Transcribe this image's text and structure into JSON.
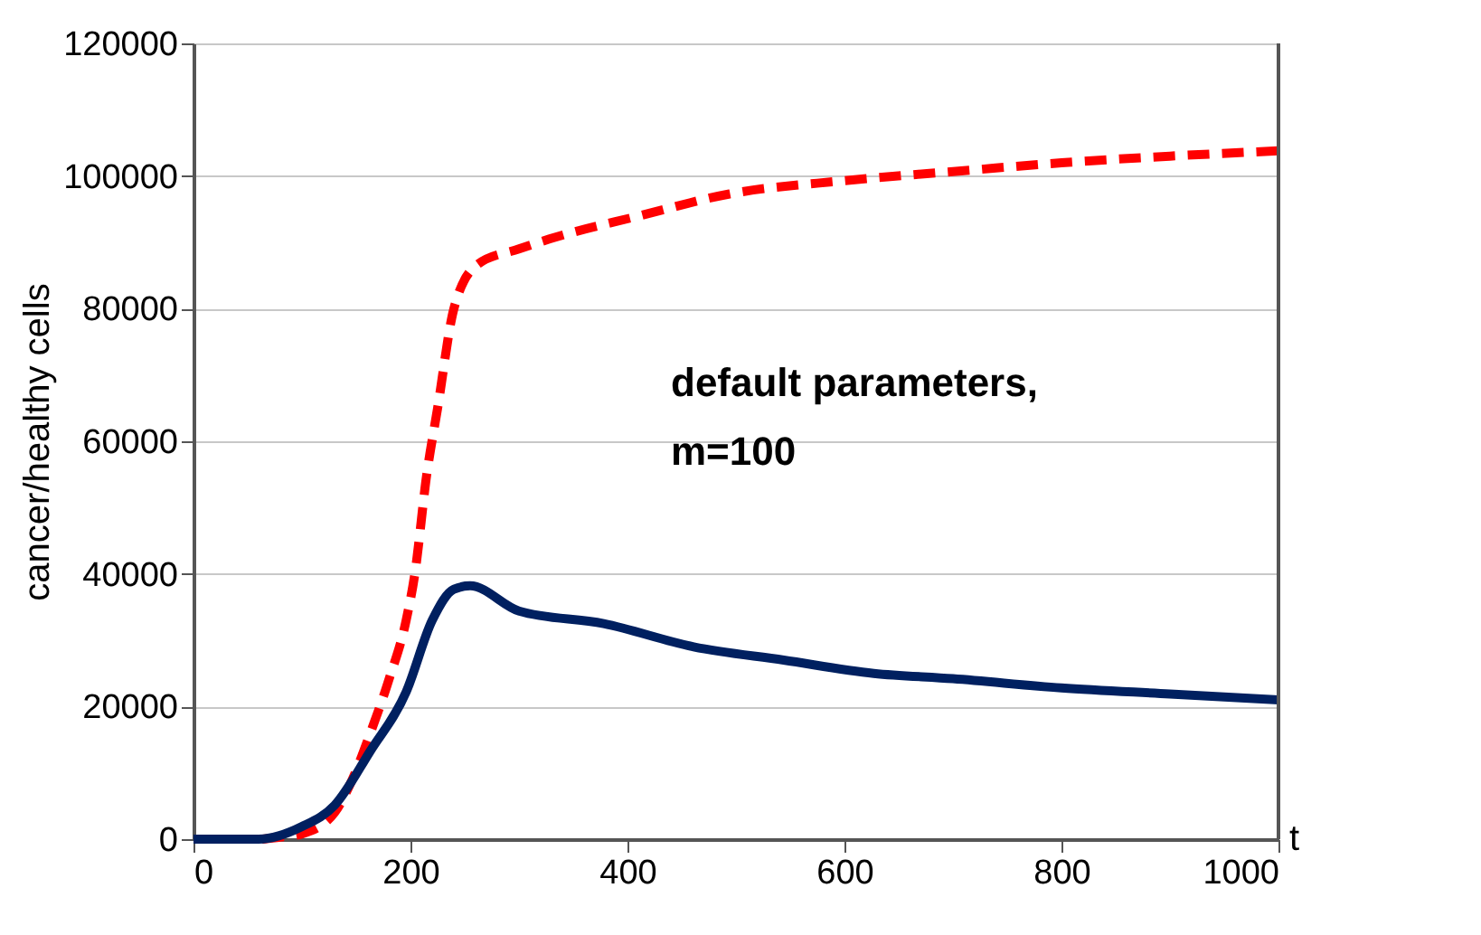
{
  "chart_data": {
    "type": "line",
    "xlabel": "t",
    "ylabel": "cancer/healthy cells",
    "annotations": [
      "default parameters,\nm=100"
    ],
    "xlim": [
      0,
      1000
    ],
    "xticks": [
      0,
      200,
      400,
      600,
      800,
      1000
    ],
    "ylim": [
      0,
      120000
    ],
    "yticks": [
      0,
      20000,
      40000,
      60000,
      80000,
      100000,
      120000
    ],
    "grid": "y",
    "marker": "none",
    "series": [
      {
        "color": "#ff0000",
        "line_style": "dashed",
        "x": [
          0,
          60,
          80,
          100,
          130,
          145,
          163,
          180,
          196,
          204,
          215,
          225,
          240,
          262,
          300,
          328,
          411,
          494,
          600,
          710,
          800,
          900,
          1000
        ],
        "values": [
          0,
          0,
          300,
          800,
          4000,
          8500,
          16000,
          24000,
          33000,
          40000,
          55000,
          65000,
          80000,
          86700,
          89000,
          90500,
          94000,
          97300,
          99300,
          100800,
          102000,
          103000,
          103800
        ]
      },
      {
        "color": "#002060",
        "line_style": "solid",
        "x": [
          0,
          60,
          100,
          130,
          163,
          196,
          220,
          240,
          255,
          300,
          378,
          461,
          544,
          627,
          700,
          800,
          900,
          1000
        ],
        "values": [
          0,
          0,
          1900,
          5100,
          13300,
          22200,
          33000,
          37700,
          38200,
          34400,
          32500,
          29000,
          27000,
          25000,
          24200,
          22800,
          21900,
          21000
        ]
      }
    ]
  }
}
